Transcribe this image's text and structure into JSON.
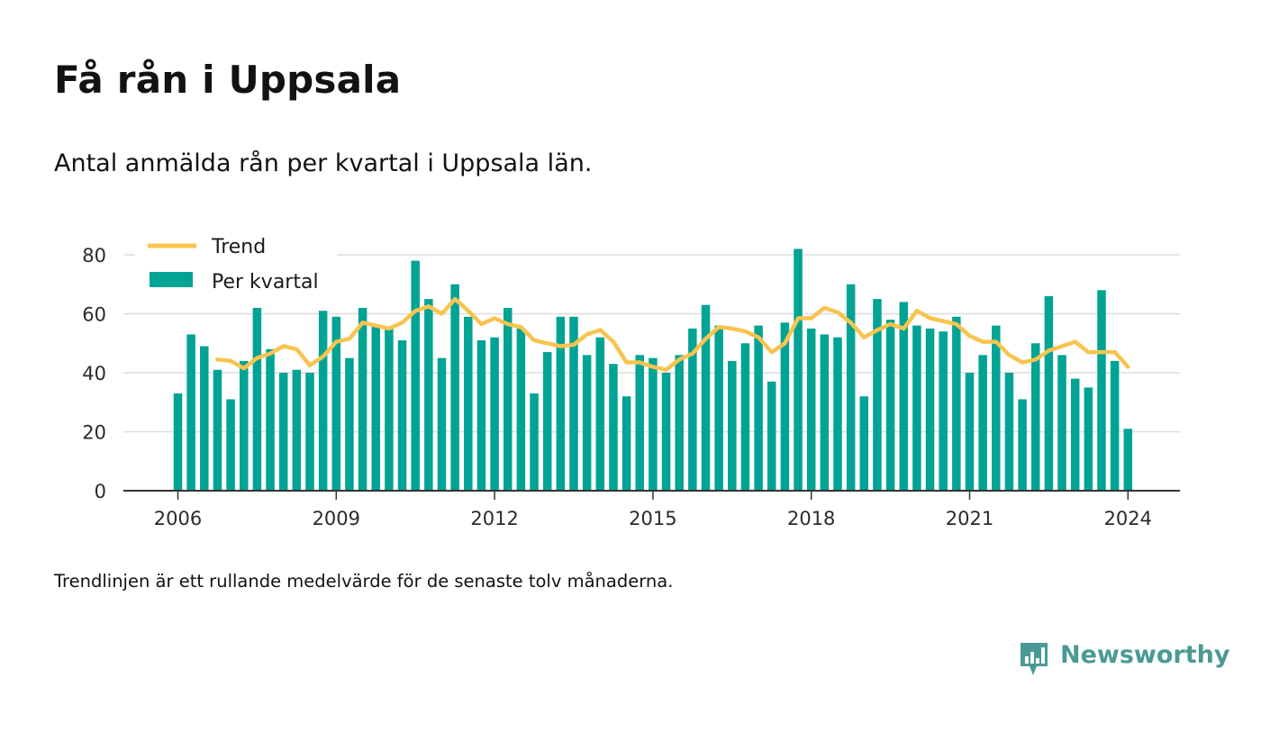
{
  "title": "Få rån i Uppsala",
  "subtitle": "Antal anmälda rån per kvartal i Uppsala län.",
  "note": "Trendlinjen är ett rullande medelvärde för de senaste tolv månaderna.",
  "brand": {
    "name": "Newsworthy",
    "icon": "newsworthy-logo-icon",
    "color": "#4a9a94"
  },
  "colors": {
    "bars": "#00a394",
    "trend": "#f8c44f",
    "axis": "#333333",
    "grid": "#dddddd"
  },
  "chart_data": {
    "type": "bar",
    "ylim": [
      0,
      80
    ],
    "yticks": [
      0,
      20,
      40,
      60,
      80
    ],
    "xticks": [
      "2006",
      "2009",
      "2012",
      "2015",
      "2018",
      "2021",
      "2024"
    ],
    "legend": {
      "placement": "top-left",
      "trend_label": "Trend",
      "bars_label": "Per kvartal"
    },
    "grid": true,
    "x_start": "2006 Q1",
    "series": [
      {
        "name": "Per kvartal",
        "type": "bar",
        "values": [
          33,
          53,
          49,
          41,
          31,
          44,
          62,
          48,
          40,
          41,
          40,
          61,
          59,
          45,
          62,
          56,
          55,
          51,
          78,
          65,
          45,
          70,
          59,
          51,
          52,
          62,
          55,
          33,
          47,
          59,
          59,
          46,
          52,
          43,
          32,
          46,
          45,
          40,
          46,
          55,
          63,
          56,
          44,
          50,
          56,
          37,
          57,
          82,
          55,
          53,
          52,
          70,
          32,
          65,
          58,
          64,
          56,
          55,
          54,
          59,
          40,
          46,
          56,
          40,
          31,
          50,
          66,
          46,
          38,
          35,
          68,
          44,
          21
        ]
      },
      {
        "name": "Trend",
        "type": "line",
        "values": [
          null,
          null,
          null,
          44.5,
          44,
          41.5,
          45,
          46.5,
          49,
          48,
          42.5,
          45.5,
          50.5,
          51.5,
          57,
          56,
          55,
          57,
          61,
          62.5,
          60,
          65,
          61,
          56.5,
          58.5,
          56.5,
          55.5,
          51,
          50,
          49,
          49.5,
          53,
          54.5,
          50.5,
          43.5,
          43.5,
          42,
          41,
          44.5,
          46.5,
          51.5,
          55.5,
          55,
          54,
          52,
          47,
          50,
          58.5,
          58.5,
          62,
          60.5,
          57,
          52,
          54.5,
          56.5,
          55,
          61,
          58.5,
          57.5,
          56.5,
          52.5,
          50.5,
          50.5,
          46,
          43.5,
          44.5,
          47.5,
          49,
          50.5,
          47,
          47,
          47,
          42
        ]
      }
    ]
  }
}
